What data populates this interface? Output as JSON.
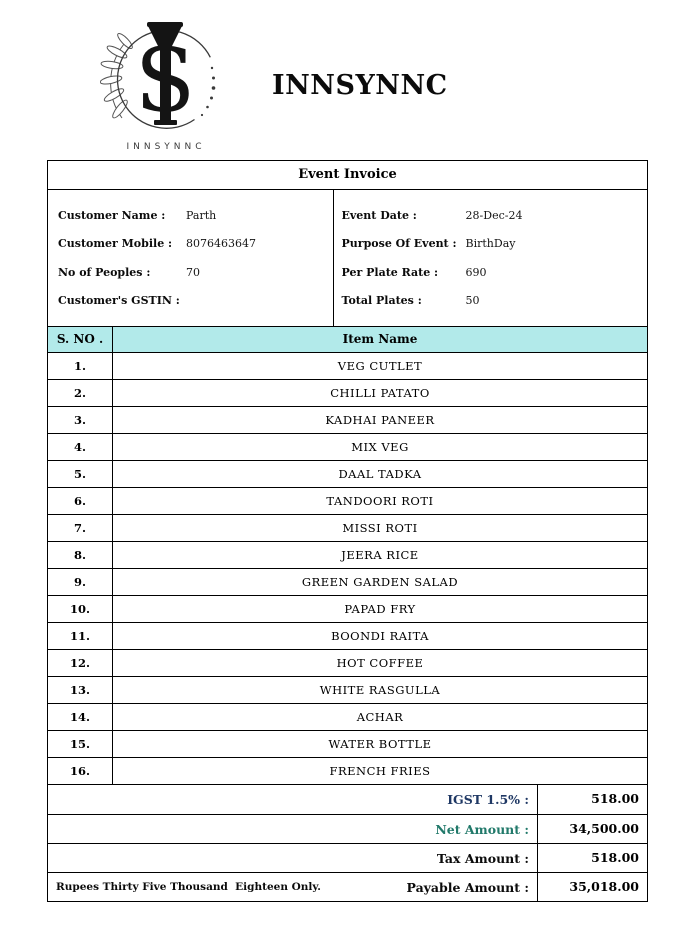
{
  "brand": {
    "title": "INNSYNNC",
    "logo": {
      "monogram_s": "S",
      "caption": "INNSYNNC"
    }
  },
  "invoice": {
    "title": "Event Invoice",
    "details": {
      "left": [
        {
          "label": "Customer Name :",
          "value": "Parth"
        },
        {
          "label": "Customer Mobile :",
          "value": "8076463647"
        },
        {
          "label": "No of Peoples :",
          "value": "70"
        },
        {
          "label": "Customer's GSTIN :",
          "value": ""
        }
      ],
      "right": [
        {
          "label": "Event Date :",
          "value": "28-Dec-24"
        },
        {
          "label": "Purpose Of Event :",
          "value": "BirthDay"
        },
        {
          "label": "Per Plate Rate :",
          "value": "690"
        },
        {
          "label": "Total Plates :",
          "value": "50"
        }
      ]
    },
    "items_table": {
      "headers": {
        "sno": "S. NO .",
        "item": "Item Name"
      },
      "rows": [
        {
          "sno": "1.",
          "name": "VEG CUTLET"
        },
        {
          "sno": "2.",
          "name": "CHILLI PATATO"
        },
        {
          "sno": "3.",
          "name": "KADHAI PANEER"
        },
        {
          "sno": "4.",
          "name": "MIX VEG"
        },
        {
          "sno": "5.",
          "name": "DAAL TADKA"
        },
        {
          "sno": "6.",
          "name": "TANDOORI ROTI"
        },
        {
          "sno": "7.",
          "name": "MISSI ROTI"
        },
        {
          "sno": "8.",
          "name": "JEERA RICE"
        },
        {
          "sno": "9.",
          "name": "GREEN GARDEN SALAD"
        },
        {
          "sno": "10.",
          "name": "PAPAD FRY"
        },
        {
          "sno": "11.",
          "name": "BOONDI RAITA"
        },
        {
          "sno": "12.",
          "name": "HOT COFFEE"
        },
        {
          "sno": "13.",
          "name": "WHITE RASGULLA"
        },
        {
          "sno": "14.",
          "name": "ACHAR"
        },
        {
          "sno": "15.",
          "name": "WATER BOTTLE"
        },
        {
          "sno": "16.",
          "name": "FRENCH FRIES"
        }
      ]
    },
    "totals": [
      {
        "label": "IGST 1.5% :",
        "value": "518.00",
        "note": "",
        "color_key": "igst_label"
      },
      {
        "label": "Net Amount :",
        "value": "34,500.00",
        "note": "",
        "color_key": "net_label"
      },
      {
        "label": "Tax Amount :",
        "value": "518.00",
        "note": "",
        "color_key": "dark"
      },
      {
        "label": "Payable Amount :",
        "value": "35,018.00",
        "note": "Rupees Thirty Five Thousand  Eighteen Only.",
        "color_key": "dark"
      }
    ],
    "colors": {
      "table_header_bg": "#b2eaea",
      "igst_label": "#1f3864",
      "net_label": "#21796a",
      "dark": "#0b0b0b",
      "border": "#000000"
    }
  }
}
